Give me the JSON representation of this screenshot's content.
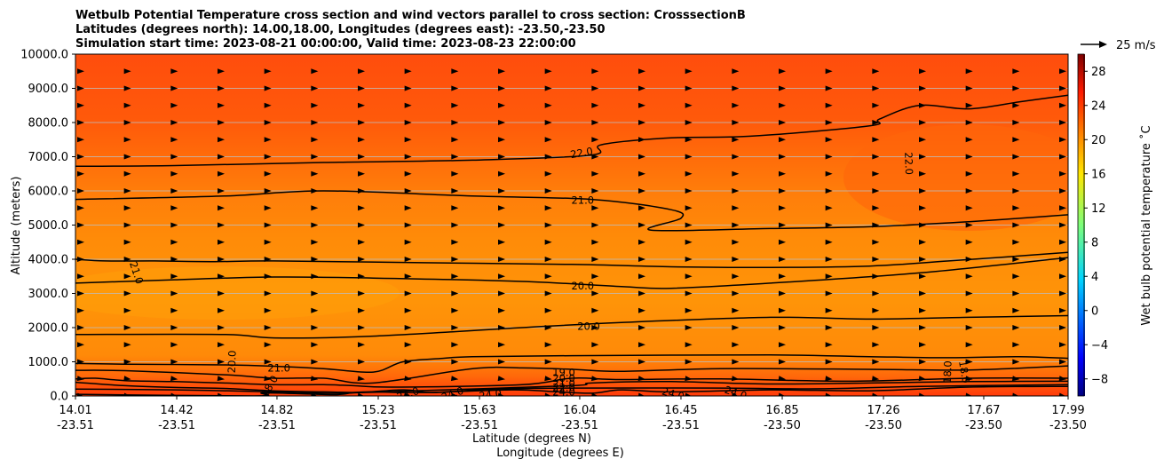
{
  "chart_data": {
    "type": "contour",
    "title_lines": [
      "Wetbulb Potential Temperature cross section and wind vectors parallel to cross section: CrosssectionB",
      "Latitudes (degrees north): 14.00,18.00, Longitudes (degrees east): -23.50,-23.50",
      "Simulation start time: 2023-08-21 00:00:00, Valid time: 2023-08-23 22:00:00"
    ],
    "ylabel": "Altitude (meters)",
    "xlabel_lat": "Latitude (degrees N)",
    "xlabel_lon": "Longitude (degrees E)",
    "ylim": [
      0,
      10000
    ],
    "y_ticks": [
      "0.0",
      "1000.0",
      "2000.0",
      "3000.0",
      "4000.0",
      "5000.0",
      "6000.0",
      "7000.0",
      "8000.0",
      "9000.0",
      "10000.0"
    ],
    "x_ticks": [
      {
        "pos": 0.0,
        "lat": "14.01",
        "lon": "-23.51"
      },
      {
        "pos": 0.102,
        "lat": "14.42",
        "lon": "-23.51"
      },
      {
        "pos": 0.203,
        "lat": "14.82",
        "lon": "-23.51"
      },
      {
        "pos": 0.305,
        "lat": "15.23",
        "lon": "-23.51"
      },
      {
        "pos": 0.407,
        "lat": "15.63",
        "lon": "-23.51"
      },
      {
        "pos": 0.508,
        "lat": "16.04",
        "lon": "-23.51"
      },
      {
        "pos": 0.61,
        "lat": "16.45",
        "lon": "-23.51"
      },
      {
        "pos": 0.712,
        "lat": "16.85",
        "lon": "-23.50"
      },
      {
        "pos": 0.814,
        "lat": "17.26",
        "lon": "-23.50"
      },
      {
        "pos": 0.915,
        "lat": "17.67",
        "lon": "-23.50"
      },
      {
        "pos": 1.0,
        "lat": "17.99",
        "lon": "-23.50"
      }
    ],
    "contours": [
      {
        "level": 22.0,
        "points": [
          [
            0,
            6720
          ],
          [
            0.1,
            6740
          ],
          [
            0.25,
            6830
          ],
          [
            0.4,
            6900
          ],
          [
            0.52,
            7050
          ],
          [
            0.53,
            7350
          ],
          [
            0.6,
            7550
          ],
          [
            0.68,
            7600
          ],
          [
            0.8,
            7900
          ],
          [
            0.81,
            8100
          ],
          [
            0.85,
            8500
          ],
          [
            0.9,
            8400
          ],
          [
            0.95,
            8600
          ],
          [
            1.0,
            8800
          ]
        ]
      },
      {
        "level": 21.0,
        "points": [
          [
            0,
            5750
          ],
          [
            0.15,
            5850
          ],
          [
            0.25,
            6000
          ],
          [
            0.4,
            5850
          ],
          [
            0.52,
            5750
          ],
          [
            0.6,
            5450
          ],
          [
            0.61,
            5200
          ],
          [
            0.58,
            4850
          ],
          [
            0.7,
            4900
          ],
          [
            0.8,
            4950
          ],
          [
            0.9,
            5100
          ],
          [
            1.0,
            5300
          ]
        ]
      },
      {
        "level": 21.0,
        "points": [
          [
            0,
            4000
          ],
          [
            0.03,
            3950
          ],
          [
            0.08,
            3950
          ],
          [
            0.14,
            3930
          ],
          [
            0.2,
            3950
          ],
          [
            0.35,
            3900
          ],
          [
            0.5,
            3850
          ],
          [
            0.6,
            3780
          ],
          [
            0.7,
            3760
          ],
          [
            0.8,
            3800
          ],
          [
            0.88,
            3950
          ],
          [
            1.0,
            4200
          ]
        ]
      },
      {
        "level": 20.0,
        "points": [
          [
            0,
            3300
          ],
          [
            0.1,
            3400
          ],
          [
            0.2,
            3480
          ],
          [
            0.3,
            3450
          ],
          [
            0.45,
            3350
          ],
          [
            0.55,
            3200
          ],
          [
            0.6,
            3150
          ],
          [
            0.7,
            3300
          ],
          [
            0.85,
            3600
          ],
          [
            1.0,
            4050
          ]
        ]
      },
      {
        "level": 20.0,
        "points": [
          [
            0,
            1800
          ],
          [
            0.15,
            1800
          ],
          [
            0.2,
            1700
          ],
          [
            0.3,
            1750
          ],
          [
            0.45,
            2000
          ],
          [
            0.55,
            2150
          ],
          [
            0.7,
            2300
          ],
          [
            0.8,
            2250
          ],
          [
            0.9,
            2300
          ],
          [
            1.0,
            2350
          ]
        ]
      },
      {
        "level": 20.0,
        "points": [
          [
            0,
            950
          ],
          [
            0.05,
            930
          ],
          [
            0.15,
            910
          ],
          [
            0.2,
            870
          ],
          [
            0.25,
            800
          ],
          [
            0.3,
            700
          ],
          [
            0.33,
            1000
          ],
          [
            0.37,
            1100
          ],
          [
            0.4,
            1150
          ],
          [
            0.5,
            1180
          ],
          [
            0.7,
            1200
          ],
          [
            0.8,
            1150
          ],
          [
            0.88,
            1120
          ],
          [
            0.95,
            1150
          ],
          [
            1.0,
            1100
          ]
        ]
      },
      {
        "level": 19.0,
        "points": [
          [
            0,
            750
          ],
          [
            0.05,
            740
          ],
          [
            0.15,
            620
          ],
          [
            0.2,
            520
          ],
          [
            0.25,
            520
          ],
          [
            0.3,
            380
          ],
          [
            0.4,
            800
          ],
          [
            0.45,
            820
          ],
          [
            0.5,
            780
          ],
          [
            0.55,
            720
          ],
          [
            0.65,
            800
          ],
          [
            0.8,
            780
          ],
          [
            0.9,
            760
          ],
          [
            1.0,
            880
          ]
        ]
      },
      {
        "level": 21.0,
        "points": [
          [
            0,
            500
          ],
          [
            0.02,
            520
          ],
          [
            0.05,
            450
          ],
          [
            0.1,
            420
          ],
          [
            0.15,
            380
          ],
          [
            0.2,
            330
          ],
          [
            0.25,
            330
          ],
          [
            0.28,
            300
          ],
          [
            0.32,
            260
          ],
          [
            0.45,
            330
          ],
          [
            0.5,
            520
          ],
          [
            0.55,
            480
          ],
          [
            0.65,
            500
          ],
          [
            0.78,
            430
          ],
          [
            0.9,
            520
          ],
          [
            1.0,
            520
          ]
        ]
      },
      {
        "level": 24.0,
        "points": [
          [
            0,
            400
          ],
          [
            0.05,
            300
          ],
          [
            0.1,
            250
          ],
          [
            0.15,
            220
          ],
          [
            0.2,
            150
          ],
          [
            0.25,
            120
          ],
          [
            0.29,
            100
          ],
          [
            0.34,
            150
          ],
          [
            0.5,
            300
          ],
          [
            0.52,
            380
          ],
          [
            0.6,
            420
          ],
          [
            0.7,
            350
          ],
          [
            0.8,
            380
          ],
          [
            0.9,
            420
          ],
          [
            1.0,
            430
          ]
        ]
      },
      {
        "level": 25.0,
        "points": [
          [
            0,
            200
          ],
          [
            0.1,
            180
          ],
          [
            0.2,
            120
          ],
          [
            0.27,
            80
          ],
          [
            0.33,
            180
          ],
          [
            0.36,
            100
          ],
          [
            0.42,
            200
          ],
          [
            0.5,
            230
          ],
          [
            0.65,
            230
          ],
          [
            0.75,
            210
          ],
          [
            0.85,
            280
          ],
          [
            1.0,
            330
          ]
        ]
      },
      {
        "level": 23.0,
        "points": [
          [
            0,
            50
          ],
          [
            0.18,
            0
          ],
          [
            0.19,
            90
          ],
          [
            0.26,
            40
          ],
          [
            0.28,
            100
          ],
          [
            0.3,
            120
          ],
          [
            0.35,
            100
          ],
          [
            0.44,
            180
          ],
          [
            0.48,
            130
          ],
          [
            0.52,
            80
          ],
          [
            0.55,
            180
          ],
          [
            0.6,
            120
          ],
          [
            0.7,
            180
          ],
          [
            0.8,
            150
          ],
          [
            0.9,
            260
          ],
          [
            1.0,
            280
          ]
        ]
      }
    ],
    "contour_labels": [
      {
        "text": "22.0",
        "x": 0.51,
        "y": 7100,
        "rot": -10
      },
      {
        "text": "22.0",
        "x": 0.839,
        "y": 6800,
        "rot": 88
      },
      {
        "text": "21.0",
        "x": 0.511,
        "y": 5720,
        "rot": 0
      },
      {
        "text": "21.0",
        "x": 0.061,
        "y": 3600,
        "rot": 72
      },
      {
        "text": "20.0",
        "x": 0.511,
        "y": 3210,
        "rot": 0
      },
      {
        "text": "20.0",
        "x": 0.517,
        "y": 2030,
        "rot": 0
      },
      {
        "text": "20.0",
        "x": 0.158,
        "y": 1000,
        "rot": -88
      },
      {
        "text": "21.0",
        "x": 0.205,
        "y": 800,
        "rot": 0
      },
      {
        "text": "18.0",
        "x": 0.879,
        "y": 700,
        "rot": -88
      },
      {
        "text": "18.0",
        "x": 0.895,
        "y": 700,
        "rot": 80
      },
      {
        "text": "19.0",
        "x": 0.492,
        "y": 680,
        "rot": 0
      },
      {
        "text": "20.0",
        "x": 0.492,
        "y": 510,
        "rot": 0
      },
      {
        "text": "21.0",
        "x": 0.492,
        "y": 350,
        "rot": 0
      },
      {
        "text": "22.0",
        "x": 0.492,
        "y": 230,
        "rot": 0
      },
      {
        "text": "24.0",
        "x": 0.492,
        "y": 100,
        "rot": 0
      },
      {
        "text": "24.0",
        "x": 0.335,
        "y": 50,
        "rot": -18
      },
      {
        "text": "24.0",
        "x": 0.38,
        "y": 50,
        "rot": -20
      },
      {
        "text": "24.0",
        "x": 0.418,
        "y": 30,
        "rot": -8
      },
      {
        "text": "24.0",
        "x": 0.602,
        "y": 50,
        "rot": 15
      },
      {
        "text": "24.0",
        "x": 0.665,
        "y": 80,
        "rot": 18
      },
      {
        "text": "18.0",
        "x": 0.196,
        "y": 280,
        "rot": -60
      }
    ],
    "wind": {
      "columns": 22,
      "levels": [
        0,
        500,
        1000,
        1500,
        2000,
        2500,
        3000,
        3500,
        4000,
        4500,
        5000,
        5500,
        6000,
        6500,
        7000,
        7500,
        8000,
        8500,
        9000,
        9500
      ],
      "direction": "parallel to cross section, mostly rightward"
    },
    "colorbar": {
      "label": "Wet bulb potential temperature $^\\circ$C",
      "label_text": "Wet bulb potential temperature ˚C",
      "range": [
        -10,
        30
      ],
      "ticks": [
        "-8",
        "-4",
        "0",
        "4",
        "8",
        "12",
        "16",
        "20",
        "24",
        "28"
      ],
      "colormap": "jet"
    },
    "quiver_key": "25 m/s"
  }
}
